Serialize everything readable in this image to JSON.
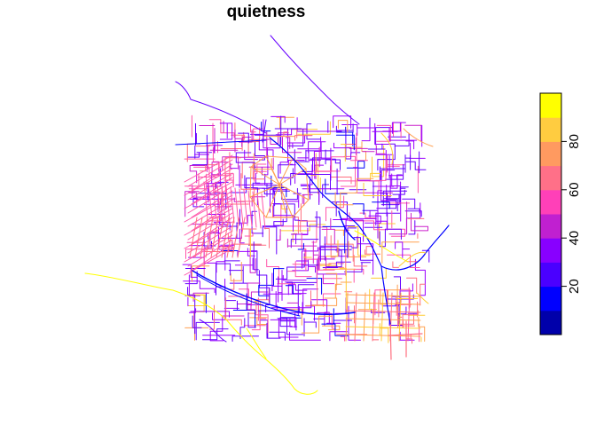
{
  "title": "quietness",
  "colors": {
    "map_palette": [
      "#0000ff",
      "#6600ff",
      "#9b00ff",
      "#cc22cc",
      "#ff55aa",
      "#ff6f7f",
      "#ffa050",
      "#ffcc33",
      "#ffff00"
    ],
    "legend_bands": [
      "#0000aa",
      "#0000ff",
      "#4a00ff",
      "#8800ff",
      "#c020d0",
      "#ff40b8",
      "#ff7088",
      "#ff9a60",
      "#ffcc40",
      "#ffff00"
    ]
  },
  "chart_data": {
    "type": "map",
    "variable": "quietness",
    "legend": {
      "type": "color-bar",
      "placement": "right",
      "range": [
        0,
        100
      ],
      "ticks": [
        20,
        40,
        60,
        80
      ],
      "tick_labels": [
        "20",
        "40",
        "60",
        "80"
      ]
    }
  }
}
